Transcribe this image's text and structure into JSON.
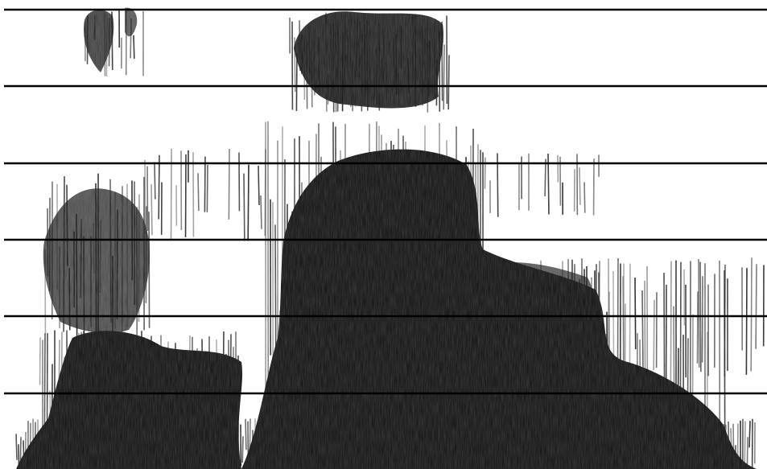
{
  "figure": {
    "kind": "spectrogram",
    "axes_labels_visible": false,
    "ink_color": "#111111",
    "background_color": "#ffffff",
    "grid": {
      "horizontal_lines": 6,
      "line_color": "#000000"
    }
  }
}
